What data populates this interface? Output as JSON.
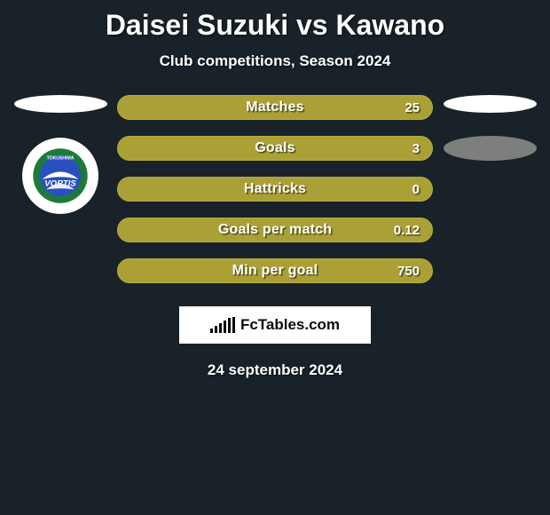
{
  "title": "Daisei Suzuki vs Kawano",
  "subtitle": "Club competitions, Season 2024",
  "date": "24 september 2024",
  "brand": "FcTables.com",
  "colors": {
    "background": "#182228",
    "bar_fill": "#aaa036",
    "bar_border": "#b8ad3c",
    "white": "#ffffff",
    "grey_ellipse": "#7c7f7e",
    "text": "#ffffff"
  },
  "stats": [
    {
      "label": "Matches",
      "value": "25"
    },
    {
      "label": "Goals",
      "value": "3"
    },
    {
      "label": "Hattricks",
      "value": "0"
    },
    {
      "label": "Goals per match",
      "value": "0.12"
    },
    {
      "label": "Min per goal",
      "value": "750"
    }
  ],
  "left_side": {
    "shapes": [
      "white-wide",
      "team-badge"
    ]
  },
  "right_side": {
    "shapes": [
      "white-wide",
      "grey-med"
    ]
  },
  "team_badge": {
    "text_top": "TOKUSHIMA",
    "text_main": "VORTIS",
    "ring_color": "#1e7a3a",
    "center_color": "#2a4fbf",
    "swoosh_color": "#ffffff",
    "accent_color": "#d64a2a"
  },
  "brand_bars_heights": [
    5,
    8,
    11,
    14,
    17,
    18
  ]
}
